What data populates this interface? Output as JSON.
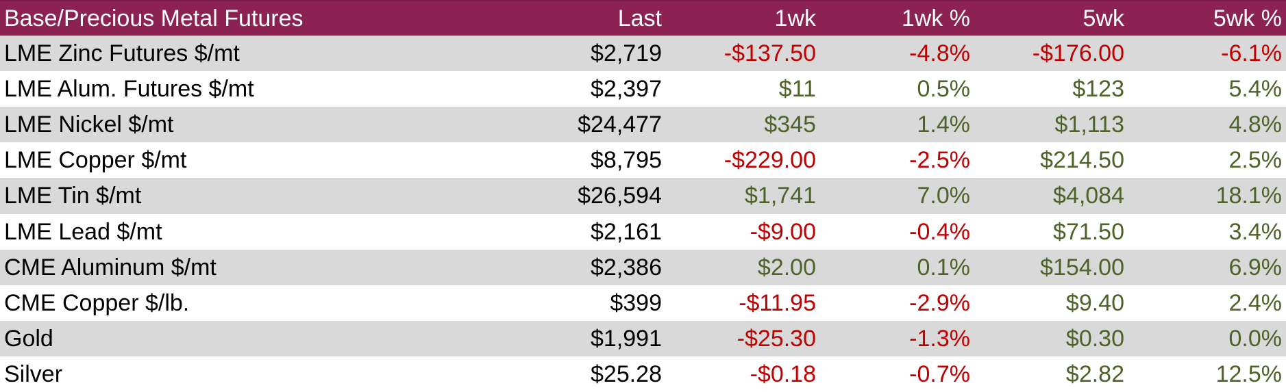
{
  "table": {
    "headers": [
      "Base/Precious Metal Futures",
      "Last",
      "1wk",
      "1wk %",
      "5wk",
      "5wk %"
    ],
    "rows": [
      {
        "name": "LME Zinc Futures $/mt",
        "last": "$2,719",
        "wk1": "-$137.50",
        "wk1pct": "-4.8%",
        "wk5": "-$176.00",
        "wk5pct": "-6.1%"
      },
      {
        "name": "LME Alum. Futures $/mt",
        "last": "$2,397",
        "wk1": "$11",
        "wk1pct": "0.5%",
        "wk5": "$123",
        "wk5pct": "5.4%"
      },
      {
        "name": "LME Nickel $/mt",
        "last": "$24,477",
        "wk1": "$345",
        "wk1pct": "1.4%",
        "wk5": "$1,113",
        "wk5pct": "4.8%"
      },
      {
        "name": "LME Copper $/mt",
        "last": "$8,795",
        "wk1": "-$229.00",
        "wk1pct": "-2.5%",
        "wk5": "$214.50",
        "wk5pct": "2.5%"
      },
      {
        "name": "LME Tin $/mt",
        "last": "$26,594",
        "wk1": "$1,741",
        "wk1pct": "7.0%",
        "wk5": "$4,084",
        "wk5pct": "18.1%"
      },
      {
        "name": "LME Lead $/mt",
        "last": "$2,161",
        "wk1": "-$9.00",
        "wk1pct": "-0.4%",
        "wk5": "$71.50",
        "wk5pct": "3.4%"
      },
      {
        "name": "CME Aluminum $/mt",
        "last": "$2,386",
        "wk1": "$2.00",
        "wk1pct": "0.1%",
        "wk5": "$154.00",
        "wk5pct": "6.9%"
      },
      {
        "name": "CME Copper $/lb.",
        "last": "$399",
        "wk1": "-$11.95",
        "wk1pct": "-2.9%",
        "wk5": "$9.40",
        "wk5pct": "2.4%"
      },
      {
        "name": "Gold",
        "last": "$1,991",
        "wk1": "-$25.30",
        "wk1pct": "-1.3%",
        "wk5": "$0.30",
        "wk5pct": "0.0%"
      },
      {
        "name": "Silver",
        "last": "$25.28",
        "wk1": "-$0.18",
        "wk1pct": "-0.7%",
        "wk5": "$2.82",
        "wk5pct": "12.5%"
      }
    ]
  },
  "colors": {
    "header_bg": "#8b2252",
    "stripe": "#d9d9d9",
    "negative": "#c00000",
    "positive": "#4f6228"
  }
}
